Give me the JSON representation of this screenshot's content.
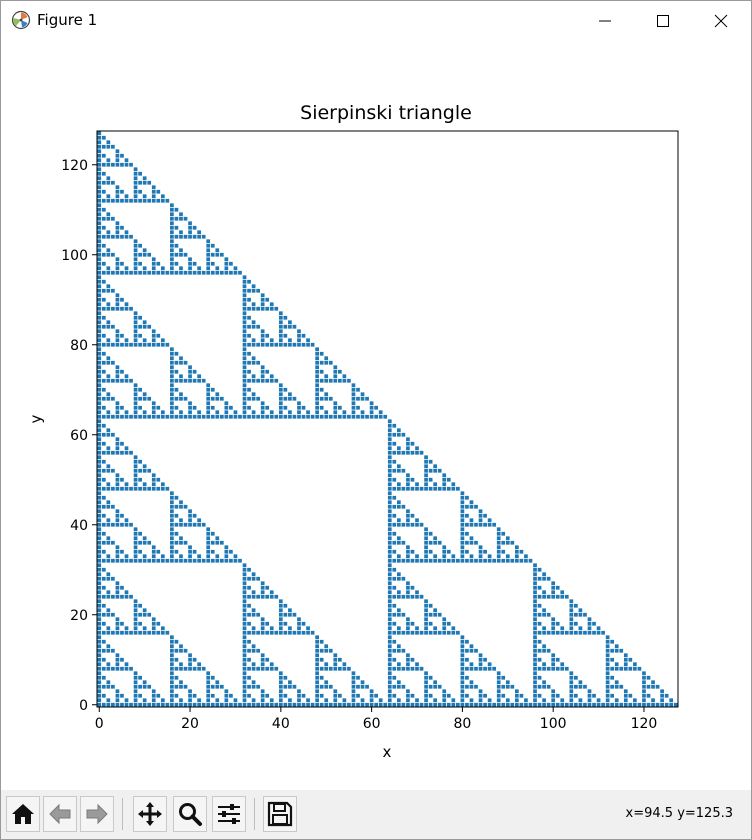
{
  "window": {
    "title": "Figure 1"
  },
  "toolbar": {
    "buttons": [
      {
        "name": "home-icon"
      },
      {
        "name": "back-arrow-icon"
      },
      {
        "name": "forward-arrow-icon"
      },
      {
        "name": "pan-icon"
      },
      {
        "name": "zoom-icon"
      },
      {
        "name": "subplots-config-icon"
      },
      {
        "name": "save-icon"
      }
    ],
    "coords": "x=94.5 y=125.3"
  },
  "chart_data": {
    "type": "scatter",
    "title": "Sierpinski triangle",
    "xlabel": "x",
    "ylabel": "y",
    "xlim": [
      -0.5,
      127.5
    ],
    "ylim": [
      -0.5,
      127.5
    ],
    "xticks": [
      0,
      20,
      40,
      60,
      80,
      100,
      120
    ],
    "yticks": [
      0,
      20,
      40,
      60,
      80,
      100,
      120
    ],
    "color": "#1f77b4",
    "grid": false,
    "rule": "points (x, y) with 0 <= x, y < 128 where (x AND y) == 0"
  }
}
